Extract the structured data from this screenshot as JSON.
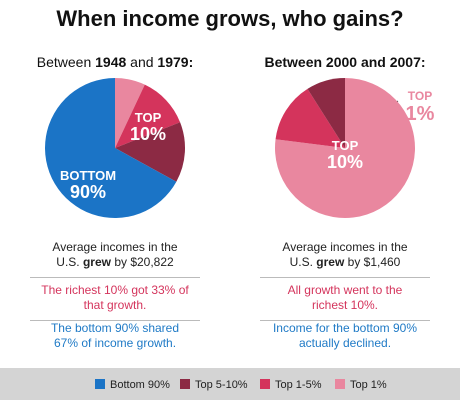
{
  "title": "When income grows, who gains?",
  "chart_data": [
    {
      "type": "pie",
      "subtitle_parts": [
        "Between ",
        "1948",
        " and ",
        "1979:"
      ],
      "categories": [
        "Bottom 90%",
        "Top 5-10%",
        "Top 1-5%",
        "Top 1%"
      ],
      "colors": [
        "#1b74c6",
        "#8c2a44",
        "#d4345c",
        "#e9879f"
      ],
      "values": [
        67,
        14,
        12,
        7
      ],
      "slice_labels": [
        [
          "TOP",
          "10%"
        ],
        [
          "BOTTOM",
          "90%"
        ]
      ],
      "notes": [
        [
          "Average incomes in the U.S. ",
          "grew",
          " by $20,822"
        ],
        [
          "The richest 10% got 33% of that growth."
        ],
        [
          "The bottom 90% shared 67% of income growth."
        ]
      ]
    },
    {
      "type": "pie",
      "subtitle_parts": [
        "Between 2000 and 2007:"
      ],
      "categories": [
        "Bottom 90%",
        "Top 5-10%",
        "Top 1-5%",
        "Top 1%"
      ],
      "colors": [
        "#1b74c6",
        "#8c2a44",
        "#d4345c",
        "#e9879f"
      ],
      "values": [
        0,
        9,
        14,
        77
      ],
      "slice_labels": [
        [
          "TOP",
          "10%"
        ],
        [
          "TOP",
          "1%"
        ]
      ],
      "notes": [
        [
          "Average incomes in the U.S. ",
          "grew",
          " by $1,460"
        ],
        [
          "All growth went to the richest 10%."
        ],
        [
          "Income for the bottom 90% actually declined."
        ]
      ]
    }
  ]
}
